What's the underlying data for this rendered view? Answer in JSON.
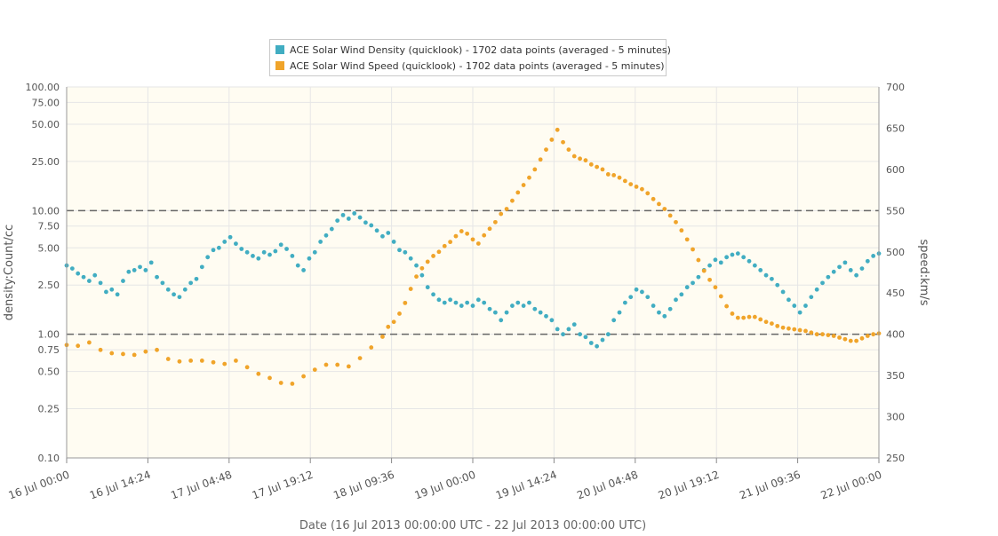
{
  "chart_data": {
    "type": "scatter",
    "xlabel": "Date (16 Jul 2013 00:00:00 UTC - 22 Jul 2013 00:00:00 UTC)",
    "ylabel_left": "density:Count/cc",
    "ylabel_right": "speed:km/s",
    "x_range_hours": [
      0,
      144
    ],
    "x_ticks": [
      {
        "h": 0,
        "label": "16 Jul 00:00"
      },
      {
        "h": 14.4,
        "label": "16 Jul 14:24"
      },
      {
        "h": 28.8,
        "label": "17 Jul 04:48"
      },
      {
        "h": 43.2,
        "label": "17 Jul 19:12"
      },
      {
        "h": 57.6,
        "label": "18 Jul 09:36"
      },
      {
        "h": 72,
        "label": "19 Jul 00:00"
      },
      {
        "h": 86.4,
        "label": "19 Jul 14:24"
      },
      {
        "h": 100.8,
        "label": "20 Jul 04:48"
      },
      {
        "h": 115.2,
        "label": "20 Jul 19:12"
      },
      {
        "h": 129.6,
        "label": "21 Jul 09:36"
      },
      {
        "h": 144,
        "label": "22 Jul 00:00"
      }
    ],
    "y_left_scale": "log",
    "y_left_range": [
      0.1,
      100
    ],
    "y_left_ticks": [
      {
        "v": 0.1,
        "label": "0.10"
      },
      {
        "v": 0.25,
        "label": "0.25"
      },
      {
        "v": 0.5,
        "label": "0.50"
      },
      {
        "v": 0.75,
        "label": "0.75"
      },
      {
        "v": 1,
        "label": "1.00"
      },
      {
        "v": 2.5,
        "label": "2.50"
      },
      {
        "v": 5,
        "label": "5.00"
      },
      {
        "v": 7.5,
        "label": "7.50"
      },
      {
        "v": 10,
        "label": "10.00"
      },
      {
        "v": 25,
        "label": "25.00"
      },
      {
        "v": 50,
        "label": "50.00"
      },
      {
        "v": 75,
        "label": "75.00"
      },
      {
        "v": 100,
        "label": "100.00"
      }
    ],
    "y_right_range": [
      250,
      700
    ],
    "y_right_ticks": [
      250,
      300,
      350,
      400,
      450,
      500,
      550,
      600,
      650,
      700
    ],
    "reference_lines_left": [
      1,
      10
    ],
    "grid": true,
    "legend_position": "top-center",
    "series": [
      {
        "name": "ACE Solar Wind Density (quicklook) - 1702 data points (averaged - 5 minutes)",
        "axis": "left",
        "color": "#41adc2",
        "points": [
          [
            0,
            3.6
          ],
          [
            1,
            3.4
          ],
          [
            2,
            3.1
          ],
          [
            3,
            2.9
          ],
          [
            4,
            2.7
          ],
          [
            5,
            3.0
          ],
          [
            6,
            2.6
          ],
          [
            7,
            2.2
          ],
          [
            8,
            2.3
          ],
          [
            9,
            2.1
          ],
          [
            10,
            2.7
          ],
          [
            11,
            3.2
          ],
          [
            12,
            3.3
          ],
          [
            13,
            3.5
          ],
          [
            14,
            3.3
          ],
          [
            15,
            3.8
          ],
          [
            16,
            2.9
          ],
          [
            17,
            2.6
          ],
          [
            18,
            2.3
          ],
          [
            19,
            2.1
          ],
          [
            20,
            2.0
          ],
          [
            21,
            2.3
          ],
          [
            22,
            2.6
          ],
          [
            23,
            2.8
          ],
          [
            24,
            3.5
          ],
          [
            25,
            4.2
          ],
          [
            26,
            4.8
          ],
          [
            27,
            5.0
          ],
          [
            28,
            5.6
          ],
          [
            29,
            6.1
          ],
          [
            30,
            5.4
          ],
          [
            31,
            4.9
          ],
          [
            32,
            4.6
          ],
          [
            33,
            4.3
          ],
          [
            34,
            4.1
          ],
          [
            35,
            4.6
          ],
          [
            36,
            4.4
          ],
          [
            37,
            4.7
          ],
          [
            38,
            5.3
          ],
          [
            39,
            4.9
          ],
          [
            40,
            4.3
          ],
          [
            41,
            3.6
          ],
          [
            42,
            3.3
          ],
          [
            43,
            4.1
          ],
          [
            44,
            4.6
          ],
          [
            45,
            5.6
          ],
          [
            46,
            6.3
          ],
          [
            47,
            7.1
          ],
          [
            48,
            8.3
          ],
          [
            49,
            9.2
          ],
          [
            50,
            8.6
          ],
          [
            51,
            9.5
          ],
          [
            52,
            8.8
          ],
          [
            53,
            8.0
          ],
          [
            54,
            7.6
          ],
          [
            55,
            6.9
          ],
          [
            56,
            6.2
          ],
          [
            57,
            6.6
          ],
          [
            58,
            5.6
          ],
          [
            59,
            4.8
          ],
          [
            60,
            4.6
          ],
          [
            61,
            4.1
          ],
          [
            62,
            3.6
          ],
          [
            63,
            3.0
          ],
          [
            64,
            2.4
          ],
          [
            65,
            2.1
          ],
          [
            66,
            1.9
          ],
          [
            67,
            1.8
          ],
          [
            68,
            1.9
          ],
          [
            69,
            1.8
          ],
          [
            70,
            1.7
          ],
          [
            71,
            1.8
          ],
          [
            72,
            1.7
          ],
          [
            73,
            1.9
          ],
          [
            74,
            1.8
          ],
          [
            75,
            1.6
          ],
          [
            76,
            1.5
          ],
          [
            77,
            1.3
          ],
          [
            78,
            1.5
          ],
          [
            79,
            1.7
          ],
          [
            80,
            1.8
          ],
          [
            81,
            1.7
          ],
          [
            82,
            1.8
          ],
          [
            83,
            1.6
          ],
          [
            84,
            1.5
          ],
          [
            85,
            1.4
          ],
          [
            86,
            1.3
          ],
          [
            87,
            1.1
          ],
          [
            88,
            1.0
          ],
          [
            89,
            1.1
          ],
          [
            90,
            1.2
          ],
          [
            91,
            1.0
          ],
          [
            92,
            0.95
          ],
          [
            93,
            0.85
          ],
          [
            94,
            0.8
          ],
          [
            95,
            0.9
          ],
          [
            96,
            1.0
          ],
          [
            97,
            1.3
          ],
          [
            98,
            1.5
          ],
          [
            99,
            1.8
          ],
          [
            100,
            2.0
          ],
          [
            101,
            2.3
          ],
          [
            102,
            2.2
          ],
          [
            103,
            2.0
          ],
          [
            104,
            1.7
          ],
          [
            105,
            1.5
          ],
          [
            106,
            1.4
          ],
          [
            107,
            1.6
          ],
          [
            108,
            1.9
          ],
          [
            109,
            2.1
          ],
          [
            110,
            2.4
          ],
          [
            111,
            2.6
          ],
          [
            112,
            2.9
          ],
          [
            113,
            3.3
          ],
          [
            114,
            3.6
          ],
          [
            115,
            4.0
          ],
          [
            116,
            3.8
          ],
          [
            117,
            4.2
          ],
          [
            118,
            4.4
          ],
          [
            119,
            4.5
          ],
          [
            120,
            4.2
          ],
          [
            121,
            3.9
          ],
          [
            122,
            3.6
          ],
          [
            123,
            3.3
          ],
          [
            124,
            3.0
          ],
          [
            125,
            2.8
          ],
          [
            126,
            2.5
          ],
          [
            127,
            2.2
          ],
          [
            128,
            1.9
          ],
          [
            129,
            1.7
          ],
          [
            130,
            1.5
          ],
          [
            131,
            1.7
          ],
          [
            132,
            2.0
          ],
          [
            133,
            2.3
          ],
          [
            134,
            2.6
          ],
          [
            135,
            2.9
          ],
          [
            136,
            3.2
          ],
          [
            137,
            3.5
          ],
          [
            138,
            3.8
          ],
          [
            139,
            3.3
          ],
          [
            140,
            3.0
          ],
          [
            141,
            3.4
          ],
          [
            142,
            3.9
          ],
          [
            143,
            4.3
          ],
          [
            144,
            4.5
          ]
        ]
      },
      {
        "name": "ACE Solar Wind Speed (quicklook) - 1702 data points (averaged - 5 minutes)",
        "axis": "right",
        "color": "#f0a42a",
        "points": [
          [
            0,
            387
          ],
          [
            2,
            386
          ],
          [
            4,
            390
          ],
          [
            6,
            381
          ],
          [
            8,
            377
          ],
          [
            10,
            376
          ],
          [
            12,
            375
          ],
          [
            14,
            379
          ],
          [
            16,
            381
          ],
          [
            18,
            370
          ],
          [
            20,
            367
          ],
          [
            22,
            368
          ],
          [
            24,
            368
          ],
          [
            26,
            366
          ],
          [
            28,
            364
          ],
          [
            30,
            368
          ],
          [
            32,
            360
          ],
          [
            34,
            352
          ],
          [
            36,
            347
          ],
          [
            38,
            341
          ],
          [
            40,
            340
          ],
          [
            42,
            349
          ],
          [
            44,
            357
          ],
          [
            46,
            363
          ],
          [
            48,
            363
          ],
          [
            50,
            361
          ],
          [
            52,
            371
          ],
          [
            54,
            384
          ],
          [
            56,
            397
          ],
          [
            57,
            409
          ],
          [
            58,
            415
          ],
          [
            59,
            425
          ],
          [
            60,
            438
          ],
          [
            61,
            455
          ],
          [
            62,
            470
          ],
          [
            63,
            480
          ],
          [
            64,
            488
          ],
          [
            65,
            495
          ],
          [
            66,
            500
          ],
          [
            67,
            507
          ],
          [
            68,
            512
          ],
          [
            69,
            519
          ],
          [
            70,
            525
          ],
          [
            71,
            522
          ],
          [
            72,
            515
          ],
          [
            73,
            510
          ],
          [
            74,
            520
          ],
          [
            75,
            528
          ],
          [
            76,
            536
          ],
          [
            77,
            546
          ],
          [
            78,
            552
          ],
          [
            79,
            562
          ],
          [
            80,
            572
          ],
          [
            81,
            581
          ],
          [
            82,
            590
          ],
          [
            83,
            600
          ],
          [
            84,
            612
          ],
          [
            85,
            624
          ],
          [
            86,
            636
          ],
          [
            87,
            648
          ],
          [
            88,
            633
          ],
          [
            89,
            624
          ],
          [
            90,
            616
          ],
          [
            91,
            613
          ],
          [
            92,
            611
          ],
          [
            93,
            606
          ],
          [
            94,
            603
          ],
          [
            95,
            600
          ],
          [
            96,
            594
          ],
          [
            97,
            593
          ],
          [
            98,
            590
          ],
          [
            99,
            586
          ],
          [
            100,
            582
          ],
          [
            101,
            579
          ],
          [
            102,
            576
          ],
          [
            103,
            571
          ],
          [
            104,
            564
          ],
          [
            105,
            558
          ],
          [
            106,
            552
          ],
          [
            107,
            544
          ],
          [
            108,
            536
          ],
          [
            109,
            526
          ],
          [
            110,
            515
          ],
          [
            111,
            503
          ],
          [
            112,
            490
          ],
          [
            113,
            477
          ],
          [
            114,
            466
          ],
          [
            115,
            457
          ],
          [
            116,
            446
          ],
          [
            117,
            434
          ],
          [
            118,
            425
          ],
          [
            119,
            420
          ],
          [
            120,
            420
          ],
          [
            121,
            421
          ],
          [
            122,
            421
          ],
          [
            123,
            418
          ],
          [
            124,
            415
          ],
          [
            125,
            413
          ],
          [
            126,
            410
          ],
          [
            127,
            408
          ],
          [
            128,
            407
          ],
          [
            129,
            406
          ],
          [
            130,
            405
          ],
          [
            131,
            404
          ],
          [
            132,
            402
          ],
          [
            133,
            400
          ],
          [
            134,
            400
          ],
          [
            135,
            399
          ],
          [
            136,
            398
          ],
          [
            137,
            396
          ],
          [
            138,
            394
          ],
          [
            139,
            392
          ],
          [
            140,
            392
          ],
          [
            141,
            395
          ],
          [
            142,
            398
          ],
          [
            143,
            400
          ],
          [
            144,
            401
          ]
        ]
      }
    ]
  }
}
